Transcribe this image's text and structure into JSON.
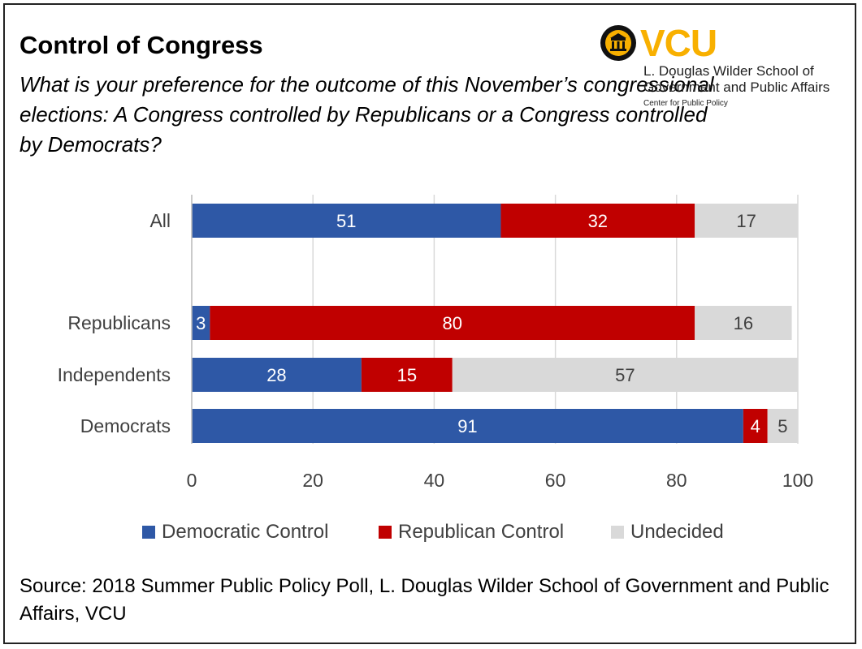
{
  "header": {
    "title": "Control of Congress",
    "subtitle": "What is your preference for the outcome of this November’s congressional elections: A Congress controlled by Republicans or a Congress controlled by Democrats?"
  },
  "logo": {
    "wordmark": "VCU",
    "line1": "L. Douglas Wilder School of",
    "line2": "Government and Public Affairs",
    "line3": "Center for Public Policy",
    "seal_color": "#f8b000"
  },
  "chart_data": {
    "type": "bar",
    "orientation": "horizontal",
    "stacked": true,
    "categories": [
      "All",
      "Republicans",
      "Independents",
      "Democrats"
    ],
    "series": [
      {
        "name": "Democratic Control",
        "color": "#2e58a6",
        "values": [
          51,
          3,
          28,
          91
        ]
      },
      {
        "name": "Republican Control",
        "color": "#c00000",
        "values": [
          32,
          80,
          15,
          4
        ]
      },
      {
        "name": "Undecided",
        "color": "#d9d9d9",
        "values": [
          17,
          16,
          57,
          5
        ]
      }
    ],
    "xlim": [
      0,
      100
    ],
    "xticks": [
      0,
      20,
      40,
      60,
      80,
      100
    ],
    "grid": true,
    "legend_position": "bottom"
  },
  "source": "Source: 2018 Summer Public Policy Poll, L. Douglas Wilder School of Government and Public Affairs, VCU"
}
